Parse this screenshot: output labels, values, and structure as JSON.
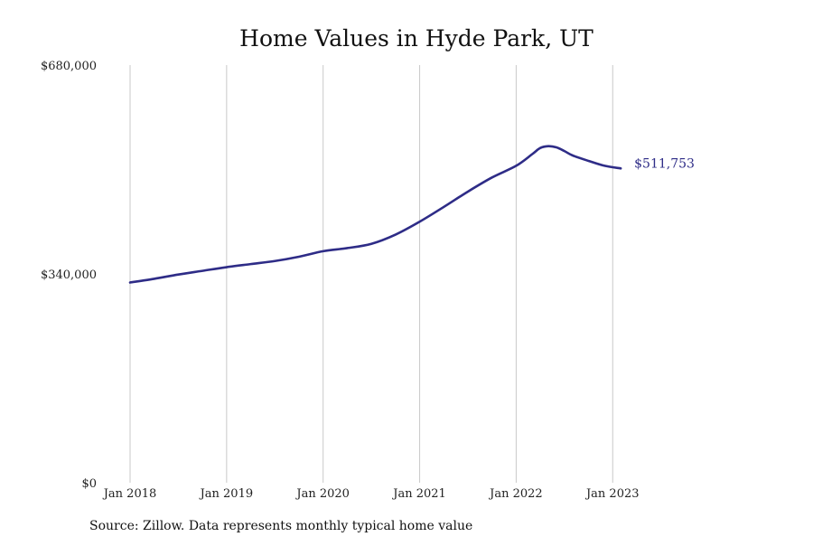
{
  "chart_data": {
    "type": "line",
    "title": "Home Values in Hyde Park, UT",
    "source_note": "Source: Zillow. Data represents monthly typical home value",
    "xlabel": "",
    "ylabel": "",
    "ylim": [
      0,
      680000
    ],
    "y_ticks": [
      {
        "value": 0,
        "label": "$0"
      },
      {
        "value": 340000,
        "label": "$340,000"
      },
      {
        "value": 680000,
        "label": "$680,000"
      }
    ],
    "x_ticks": [
      {
        "value": "2018-01",
        "label": "Jan 2018"
      },
      {
        "value": "2019-01",
        "label": "Jan 2019"
      },
      {
        "value": "2020-01",
        "label": "Jan 2020"
      },
      {
        "value": "2021-01",
        "label": "Jan 2021"
      },
      {
        "value": "2022-01",
        "label": "Jan 2022"
      },
      {
        "value": "2023-01",
        "label": "Jan 2023"
      }
    ],
    "x_range": [
      "2018-01",
      "2024-02"
    ],
    "grid": {
      "vertical": true,
      "horizontal": false
    },
    "end_label": "$511,753",
    "colors": {
      "line": "#2e2c87",
      "grid": "#c9c9c9"
    },
    "series": [
      {
        "x": [
          "2018-01",
          "2018-04",
          "2018-07",
          "2018-10",
          "2019-01",
          "2019-04",
          "2019-07",
          "2019-10",
          "2020-01",
          "2020-04",
          "2020-07",
          "2020-10",
          "2021-01",
          "2021-04",
          "2021-07",
          "2021-10",
          "2022-01",
          "2022-03",
          "2022-04",
          "2022-05",
          "2022-06",
          "2022-07",
          "2022-08",
          "2022-10",
          "2022-12",
          "2023-02"
        ],
        "y": [
          326000,
          332000,
          339000,
          345000,
          351000,
          356000,
          361000,
          368000,
          377000,
          382000,
          389000,
          404000,
          425000,
          449000,
          474000,
          497000,
          516000,
          535000,
          545000,
          548000,
          546000,
          540000,
          533000,
          524000,
          516000,
          511753
        ]
      }
    ]
  }
}
